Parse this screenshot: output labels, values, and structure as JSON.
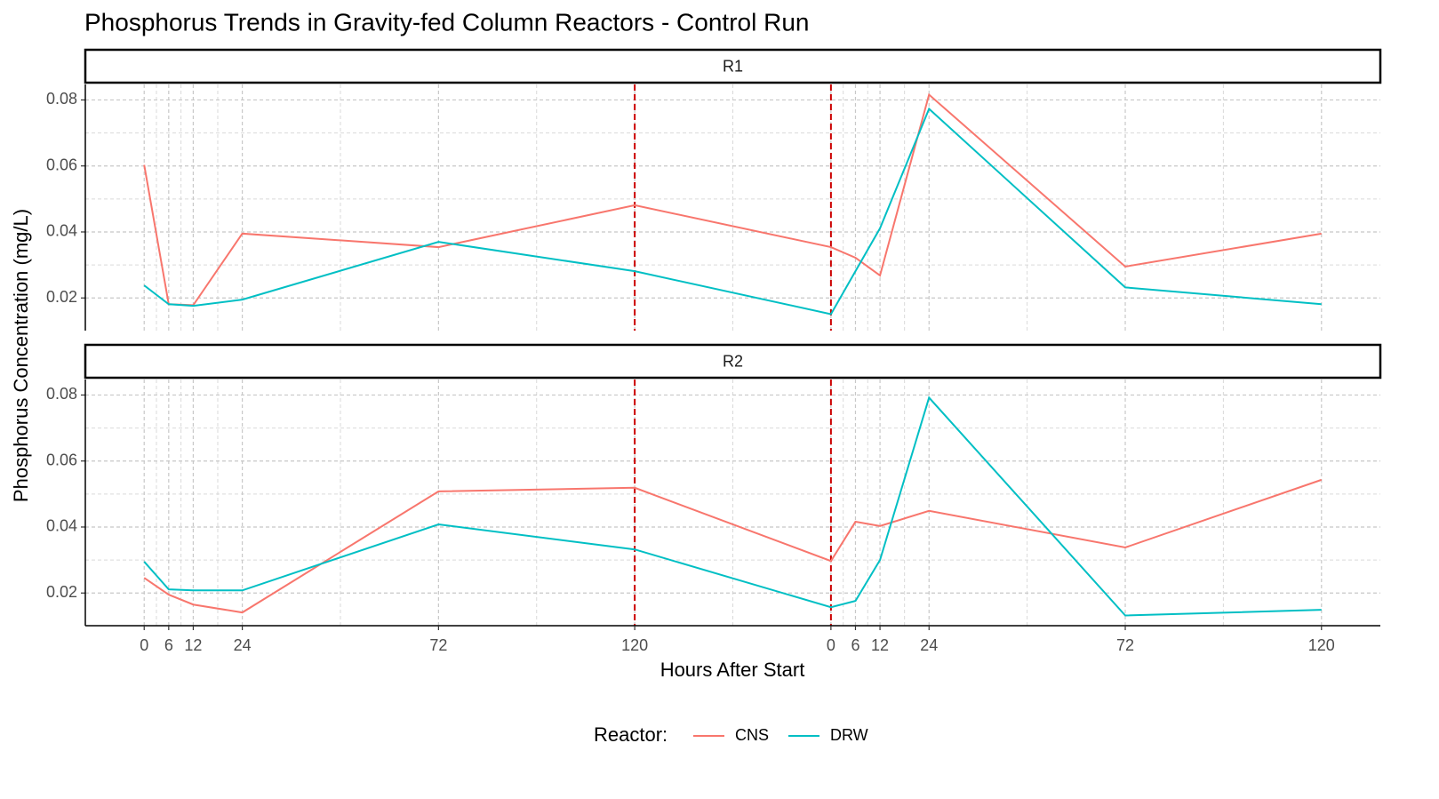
{
  "chart_data": {
    "type": "line",
    "title": "Phosphorus Trends in Gravity-fed Column Reactors - Control Run",
    "x_label": "Hours After Start",
    "y_label": "Phosphorus Concentration (mg/L)",
    "legend_title": "Reactor:",
    "x": [
      0,
      6,
      12,
      24,
      72,
      120,
      168,
      174,
      180,
      192,
      240,
      288
    ],
    "xlim": [
      -14.4,
      302.4
    ],
    "xticks": [
      0,
      6,
      12,
      24,
      72,
      120,
      {
        "value": 168,
        "label": "0"
      },
      {
        "value": 174,
        "label": "6"
      },
      {
        "value": 180,
        "label": "12"
      },
      {
        "value": 192,
        "label": "24"
      },
      {
        "value": 240,
        "label": "72"
      },
      {
        "value": 288,
        "label": "120"
      }
    ],
    "ylim": [
      0.0101,
      0.0847
    ],
    "yticks": [
      0.02,
      0.04,
      0.06,
      0.08
    ],
    "grid": true,
    "vlines": [
      120,
      168
    ],
    "vline_color": "#cc0000",
    "panels": [
      {
        "label": "R1",
        "series": [
          {
            "name": "CNS",
            "color": "#F8766D",
            "values": [
              0.0603,
              0.0181,
              0.0178,
              0.0395,
              0.0354,
              0.0481,
              0.0354,
              0.0322,
              0.0268,
              0.0816,
              0.0295,
              0.0395
            ]
          },
          {
            "name": "DRW",
            "color": "#00BFC4",
            "values": [
              0.0238,
              0.0181,
              0.0176,
              0.0195,
              0.037,
              0.0281,
              0.0151,
              0.0281,
              0.0411,
              0.0773,
              0.0232,
              0.0181
            ]
          }
        ]
      },
      {
        "label": "R2",
        "series": [
          {
            "name": "CNS",
            "color": "#F8766D",
            "values": [
              0.0246,
              0.0195,
              0.0165,
              0.0141,
              0.0508,
              0.0519,
              0.0297,
              0.0416,
              0.0403,
              0.0449,
              0.0338,
              0.0543
            ]
          },
          {
            "name": "DRW",
            "color": "#00BFC4",
            "values": [
              0.0295,
              0.0211,
              0.0208,
              0.0208,
              0.0408,
              0.0332,
              0.0157,
              0.0176,
              0.03,
              0.0792,
              0.0132,
              0.0149
            ]
          }
        ]
      }
    ]
  }
}
